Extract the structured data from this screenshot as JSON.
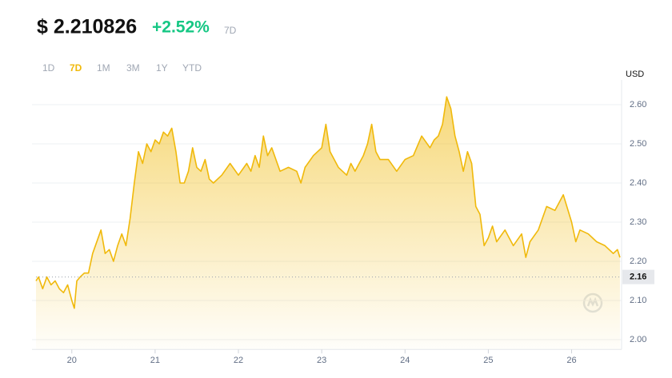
{
  "chart_data": {
    "type": "area",
    "title": "$ 2.210826",
    "change": "+2.52%",
    "period": "7D",
    "ranges": [
      "1D",
      "7D",
      "1M",
      "3M",
      "1Y",
      "YTD"
    ],
    "active_range": 1,
    "currency": "USD",
    "color": "#f0b90b",
    "change_color": "#16c784",
    "reference": 2.16,
    "xlim": [
      19.57,
      26.6
    ],
    "ylim": [
      1.975,
      2.65
    ],
    "xticks": [
      20,
      21,
      22,
      23,
      24,
      25,
      26
    ],
    "yticks": [
      {
        "value": 2,
        "label": "2.00"
      },
      {
        "value": 2.1,
        "label": "2.10"
      },
      {
        "value": 2.2,
        "label": "2.20"
      },
      {
        "value": 2.3,
        "label": "2.30"
      },
      {
        "value": 2.4,
        "label": "2.40"
      },
      {
        "value": 2.5,
        "label": "2.50"
      },
      {
        "value": 2.6,
        "label": "2.60"
      }
    ],
    "grid": true,
    "x": [
      19.57,
      19.6,
      19.65,
      19.7,
      19.75,
      19.8,
      19.85,
      19.9,
      19.95,
      20.0,
      20.03,
      20.06,
      20.1,
      20.15,
      20.2,
      20.25,
      20.35,
      20.4,
      20.45,
      20.5,
      20.55,
      20.6,
      20.65,
      20.7,
      20.75,
      20.8,
      20.85,
      20.9,
      20.95,
      21.0,
      21.05,
      21.1,
      21.15,
      21.2,
      21.25,
      21.3,
      21.35,
      21.4,
      21.45,
      21.5,
      21.55,
      21.6,
      21.65,
      21.7,
      21.8,
      21.9,
      22.0,
      22.1,
      22.15,
      22.2,
      22.25,
      22.3,
      22.35,
      22.4,
      22.5,
      22.6,
      22.7,
      22.75,
      22.8,
      22.9,
      23.0,
      23.05,
      23.1,
      23.2,
      23.3,
      23.35,
      23.4,
      23.5,
      23.55,
      23.6,
      23.65,
      23.7,
      23.8,
      23.9,
      24.0,
      24.1,
      24.2,
      24.3,
      24.35,
      24.4,
      24.45,
      24.5,
      24.55,
      24.6,
      24.65,
      24.7,
      24.75,
      24.8,
      24.85,
      24.9,
      24.95,
      25.0,
      25.05,
      25.1,
      25.2,
      25.3,
      25.4,
      25.45,
      25.5,
      25.6,
      25.7,
      25.8,
      25.9,
      26.0,
      26.05,
      26.1,
      26.2,
      26.3,
      26.4,
      26.5,
      26.55,
      26.58
    ],
    "values": [
      2.15,
      2.16,
      2.13,
      2.16,
      2.14,
      2.15,
      2.13,
      2.12,
      2.14,
      2.1,
      2.08,
      2.15,
      2.16,
      2.17,
      2.17,
      2.22,
      2.28,
      2.22,
      2.23,
      2.2,
      2.24,
      2.27,
      2.24,
      2.31,
      2.4,
      2.48,
      2.45,
      2.5,
      2.48,
      2.51,
      2.5,
      2.53,
      2.52,
      2.54,
      2.48,
      2.4,
      2.4,
      2.43,
      2.49,
      2.44,
      2.43,
      2.46,
      2.41,
      2.4,
      2.42,
      2.45,
      2.42,
      2.45,
      2.43,
      2.47,
      2.44,
      2.52,
      2.47,
      2.49,
      2.43,
      2.44,
      2.43,
      2.4,
      2.44,
      2.47,
      2.49,
      2.55,
      2.48,
      2.44,
      2.42,
      2.45,
      2.43,
      2.47,
      2.5,
      2.55,
      2.48,
      2.46,
      2.46,
      2.43,
      2.46,
      2.47,
      2.52,
      2.49,
      2.51,
      2.52,
      2.55,
      2.62,
      2.59,
      2.52,
      2.48,
      2.43,
      2.48,
      2.45,
      2.34,
      2.32,
      2.24,
      2.26,
      2.29,
      2.25,
      2.28,
      2.24,
      2.27,
      2.21,
      2.25,
      2.28,
      2.34,
      2.33,
      2.37,
      2.3,
      2.25,
      2.28,
      2.27,
      2.25,
      2.24,
      2.22,
      2.23,
      2.21
    ]
  }
}
